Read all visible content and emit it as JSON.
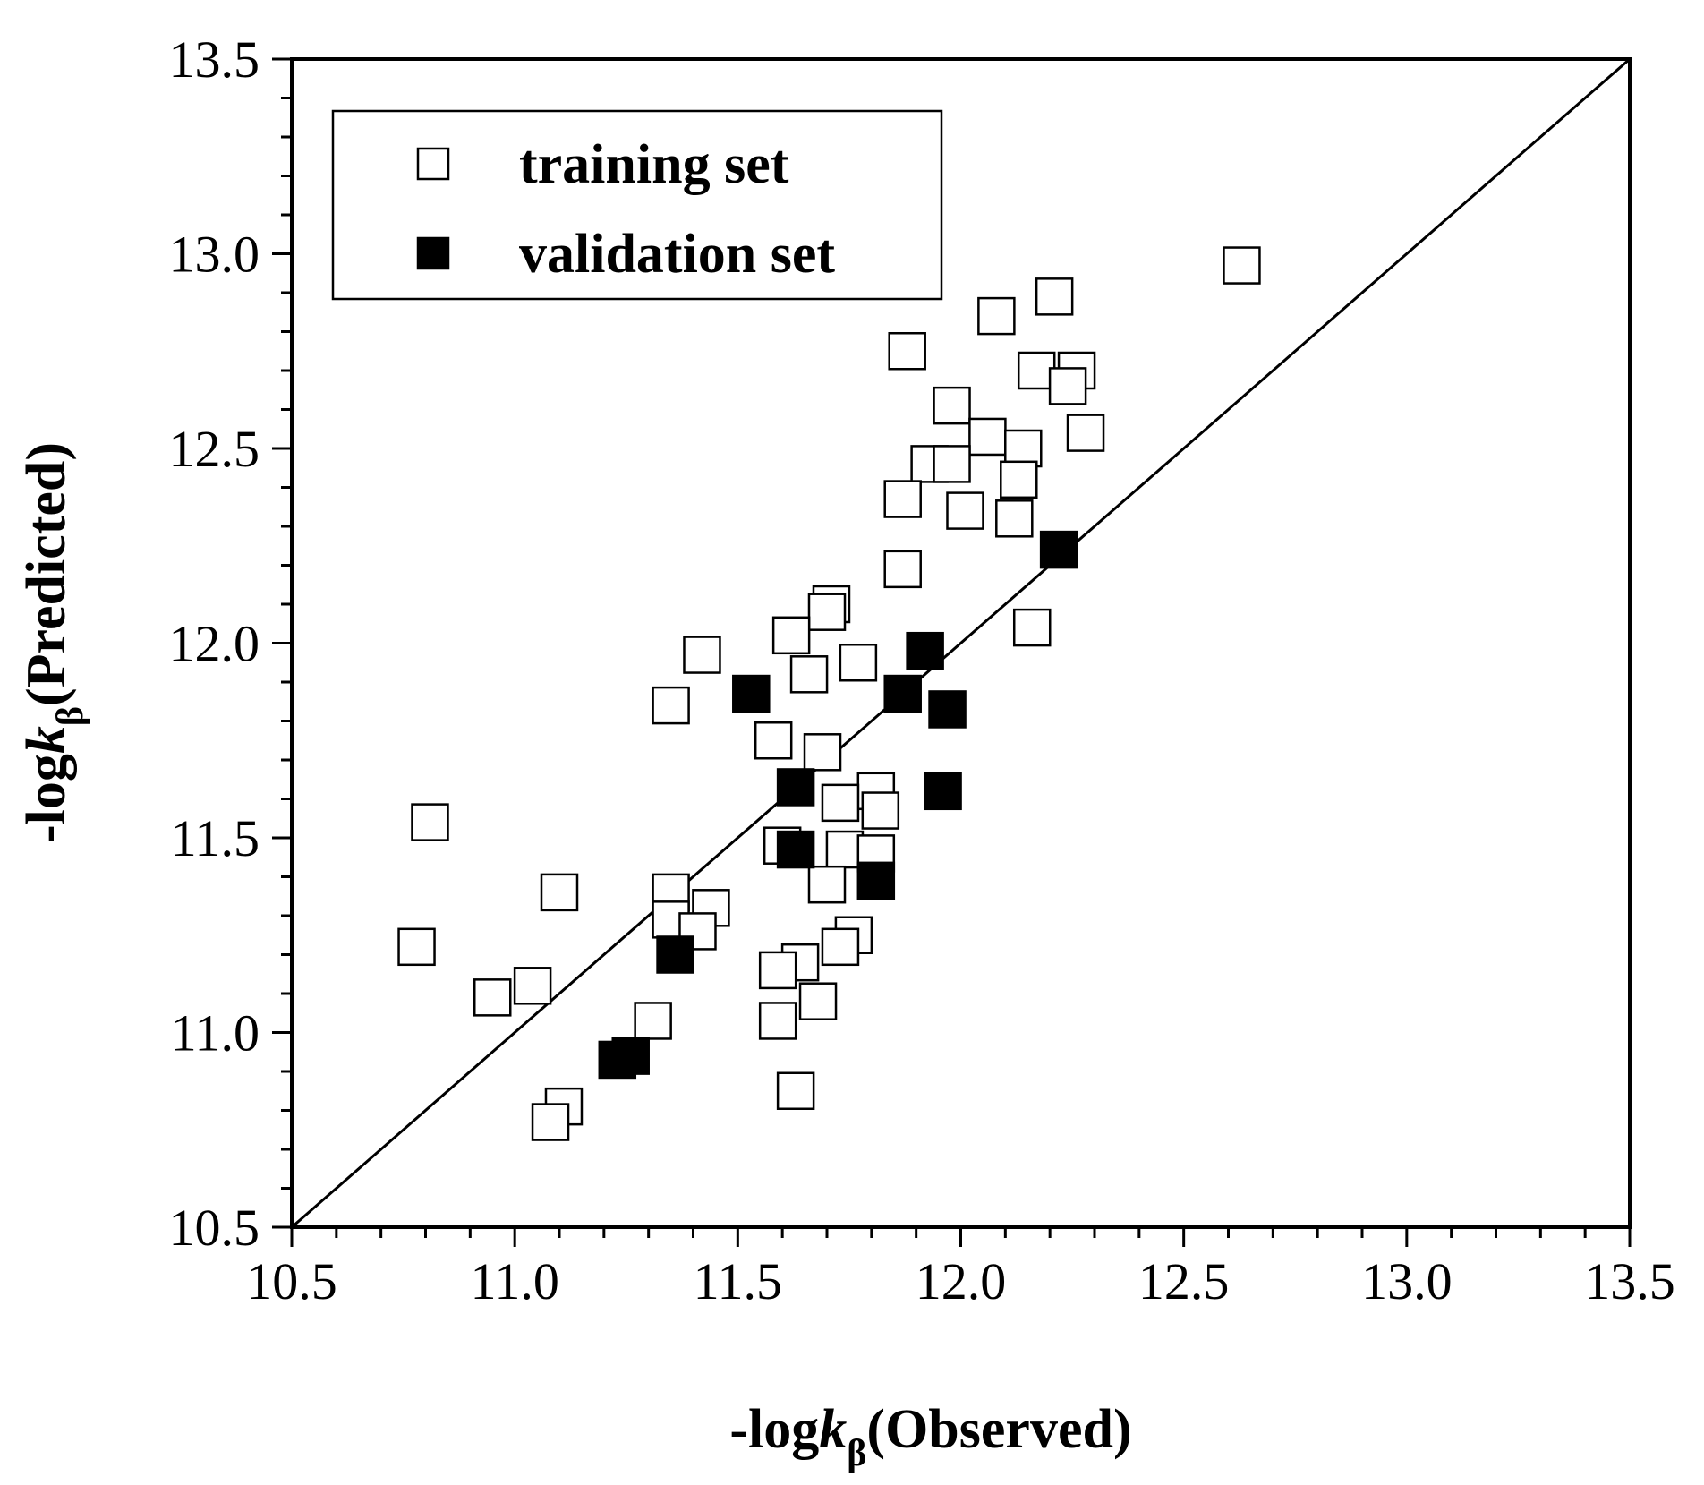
{
  "chart_data": {
    "type": "scatter",
    "xlabel": {
      "prefix": "-log",
      "var": "k",
      "sub": "β",
      "suffix": "(Observed)"
    },
    "ylabel": {
      "prefix": "-log",
      "var": "k",
      "sub": "β",
      "suffix": "(Predicted)"
    },
    "xlim": [
      10.5,
      13.5
    ],
    "ylim": [
      10.5,
      13.5
    ],
    "x_ticks": [
      "10.5",
      "11.0",
      "11.5",
      "12.0",
      "12.5",
      "13.0",
      "13.5"
    ],
    "y_ticks": [
      "10.5",
      "11.0",
      "11.5",
      "12.0",
      "12.5",
      "13.0",
      "13.5"
    ],
    "reference_line": {
      "from": [
        10.5,
        10.5
      ],
      "to": [
        13.5,
        13.5
      ]
    },
    "legend": {
      "position": "top-left"
    },
    "series": [
      {
        "name": "training set",
        "marker": "open-square",
        "points": [
          [
            12.63,
            12.97
          ],
          [
            12.21,
            12.89
          ],
          [
            12.08,
            12.84
          ],
          [
            11.88,
            12.75
          ],
          [
            12.17,
            12.7
          ],
          [
            12.26,
            12.7
          ],
          [
            12.24,
            12.66
          ],
          [
            11.98,
            12.61
          ],
          [
            12.06,
            12.53
          ],
          [
            12.28,
            12.54
          ],
          [
            12.14,
            12.5
          ],
          [
            11.93,
            12.46
          ],
          [
            11.98,
            12.46
          ],
          [
            12.13,
            12.42
          ],
          [
            11.87,
            12.37
          ],
          [
            12.01,
            12.34
          ],
          [
            12.12,
            12.32
          ],
          [
            11.87,
            12.19
          ],
          [
            11.71,
            12.1
          ],
          [
            11.7,
            12.08
          ],
          [
            11.62,
            12.02
          ],
          [
            12.16,
            12.04
          ],
          [
            11.42,
            11.97
          ],
          [
            11.77,
            11.95
          ],
          [
            11.66,
            11.92
          ],
          [
            11.35,
            11.84
          ],
          [
            11.58,
            11.75
          ],
          [
            11.69,
            11.72
          ],
          [
            11.81,
            11.62
          ],
          [
            11.73,
            11.59
          ],
          [
            11.82,
            11.57
          ],
          [
            10.81,
            11.54
          ],
          [
            11.6,
            11.48
          ],
          [
            11.74,
            11.47
          ],
          [
            11.81,
            11.46
          ],
          [
            11.1,
            11.36
          ],
          [
            11.35,
            11.36
          ],
          [
            11.7,
            11.38
          ],
          [
            11.44,
            11.32
          ],
          [
            11.35,
            11.29
          ],
          [
            11.41,
            11.26
          ],
          [
            11.76,
            11.25
          ],
          [
            10.78,
            11.22
          ],
          [
            11.73,
            11.22
          ],
          [
            11.64,
            11.18
          ],
          [
            11.59,
            11.16
          ],
          [
            11.04,
            11.12
          ],
          [
            10.95,
            11.09
          ],
          [
            11.68,
            11.08
          ],
          [
            11.31,
            11.03
          ],
          [
            11.59,
            11.03
          ],
          [
            11.11,
            10.81
          ],
          [
            11.08,
            10.77
          ],
          [
            11.63,
            10.85
          ]
        ]
      },
      {
        "name": "validation set",
        "marker": "filled-square",
        "points": [
          [
            12.22,
            12.24
          ],
          [
            11.92,
            11.98
          ],
          [
            11.53,
            11.87
          ],
          [
            11.87,
            11.87
          ],
          [
            11.97,
            11.83
          ],
          [
            11.63,
            11.63
          ],
          [
            11.96,
            11.62
          ],
          [
            11.63,
            11.47
          ],
          [
            11.81,
            11.39
          ],
          [
            11.36,
            11.2
          ],
          [
            11.26,
            10.94
          ],
          [
            11.23,
            10.93
          ]
        ]
      }
    ]
  }
}
